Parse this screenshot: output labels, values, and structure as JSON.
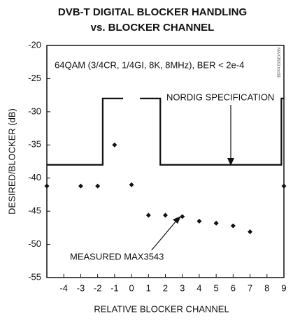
{
  "chart_data": {
    "type": "scatter",
    "title": [
      "DVB-T DIGITAL BLOCKER HANDLING",
      "vs. BLOCKER CHANNEL"
    ],
    "xlabel": "RELATIVE BLOCKER CHANNEL",
    "ylabel": "DESIRED/BLOCKER (dB)",
    "annotations": [
      "64QAM (3/4CR, 1/4GI, 8K, 8MHz), BER < 2e-4",
      "NORDIG SPECIFICATION",
      "MEASURED MAX3543",
      "MAX3543 toc08"
    ],
    "xlim": [
      -5,
      9
    ],
    "xticks": [
      -4,
      -3,
      -2,
      -1,
      0,
      1,
      2,
      3,
      4,
      5,
      6,
      7,
      8,
      9
    ],
    "ylim": [
      -55,
      -20
    ],
    "yticks": [
      -20,
      -25,
      -30,
      -35,
      -40,
      -45,
      -50,
      -55
    ],
    "grid": false,
    "series": [
      {
        "name": "MEASURED MAX3543",
        "color": "#111111",
        "style": "markers",
        "x": [
          -5,
          -3,
          -2,
          -1,
          0,
          1,
          2,
          3,
          4,
          5,
          6,
          7,
          9
        ],
        "values": [
          -41.2,
          -41.2,
          -41.2,
          -35,
          -41,
          -45.6,
          -45.6,
          -45.8,
          -46.5,
          -46.8,
          -47.2,
          -48.1,
          -41.2
        ]
      },
      {
        "name": "NORDIG SPECIFICATION",
        "color": "#111111",
        "style": "line",
        "x": [
          -5,
          -1.7,
          -1.7,
          -0.5,
          null,
          0.5,
          1.7,
          1.7,
          8.85,
          8.85,
          9
        ],
        "values": [
          -38,
          -38,
          -28,
          -28,
          null,
          -28,
          -28,
          -38,
          -38,
          -28,
          -28
        ]
      }
    ]
  }
}
